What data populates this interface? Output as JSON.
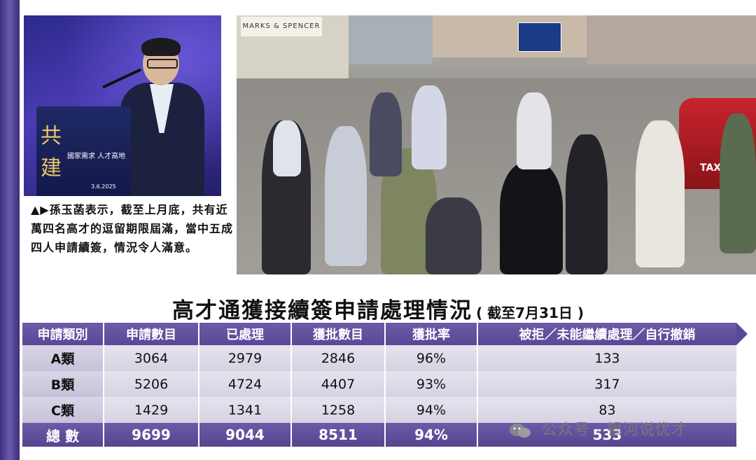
{
  "caption": "▲▶孫玉菡表示，截至上月底，共有近萬四名高才的逗留期限屆滿，當中五成四人申請續簽，情況令人滿意。",
  "photo_left": {
    "podium_logo": "共建",
    "podium_sub": "國家需求 人才高地",
    "podium_date": "3.6.2025"
  },
  "photo_right": {
    "store_sign": "MARKS & SPENCER",
    "taxi_label": "TAXI"
  },
  "table": {
    "title": "高才通獲接續簽申請處理情況",
    "subtitle": "( 截至7月31日 )",
    "headers": [
      "申請類別",
      "申請數目",
      "已處理",
      "獲批數目",
      "獲批率",
      "被拒／未能繼續處理／自行撤銷"
    ],
    "rows": [
      {
        "category": "A類",
        "applications": "3064",
        "processed": "2979",
        "approved": "2846",
        "rate": "96%",
        "rejected": "133"
      },
      {
        "category": "B類",
        "applications": "5206",
        "processed": "4724",
        "approved": "4407",
        "rate": "93%",
        "rejected": "317"
      },
      {
        "category": "C類",
        "applications": "1429",
        "processed": "1341",
        "approved": "1258",
        "rate": "94%",
        "rejected": "83"
      }
    ],
    "total": {
      "category": "總 數",
      "applications": "9699",
      "processed": "9044",
      "approved": "8511",
      "rate": "94%",
      "rejected": "533"
    }
  },
  "watermark": "公众号 · 银河说优才",
  "colors": {
    "header_purple": "#5f4c9e",
    "row_gray": "#dedbe8",
    "spine": "#4d3f92"
  }
}
